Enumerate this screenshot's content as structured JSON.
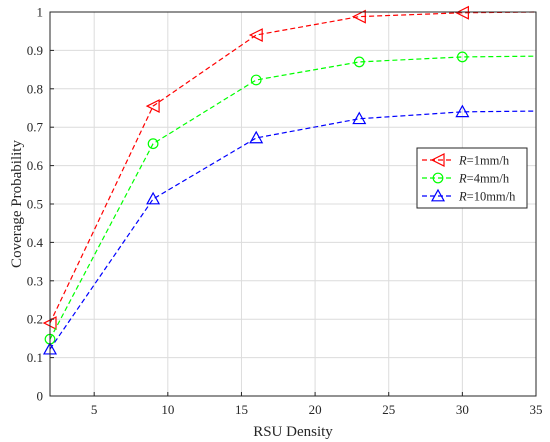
{
  "chart_data": {
    "type": "line",
    "xlabel": "RSU Density",
    "ylabel": "Coverage Probability",
    "xlim": [
      2,
      35
    ],
    "ylim": [
      0,
      1
    ],
    "xticks": [
      5,
      10,
      15,
      20,
      25,
      30,
      35
    ],
    "yticks": [
      0,
      0.1,
      0.2,
      0.3,
      0.4,
      0.5,
      0.6,
      0.7,
      0.8,
      0.9,
      1
    ],
    "grid": true,
    "legend_position": "right-middle",
    "x": [
      2,
      9,
      16,
      23,
      30,
      35
    ],
    "series": [
      {
        "name": "R=1mm/h",
        "name_var": "R",
        "name_rest": "=1mm/h",
        "color": "#ff0000",
        "marker": "triangle-left",
        "line_style": "dashed",
        "values": [
          0.19,
          0.755,
          0.94,
          0.988,
          0.998,
          1.0
        ],
        "marker_indices": [
          0,
          1,
          2,
          3,
          4
        ]
      },
      {
        "name": "R=4mm/h",
        "name_var": "R",
        "name_rest": "=4mm/h",
        "color": "#00ff00",
        "marker": "circle",
        "line_style": "dashed",
        "values": [
          0.148,
          0.657,
          0.823,
          0.87,
          0.883,
          0.885
        ],
        "marker_indices": [
          0,
          1,
          2,
          3,
          4
        ]
      },
      {
        "name": "R=10mm/h",
        "name_var": "R",
        "name_rest": "=10mm/h",
        "color": "#0000ff",
        "marker": "triangle-up",
        "line_style": "dashed",
        "values": [
          0.122,
          0.513,
          0.672,
          0.722,
          0.74,
          0.742
        ],
        "marker_indices": [
          0,
          1,
          2,
          3,
          4
        ]
      }
    ]
  }
}
